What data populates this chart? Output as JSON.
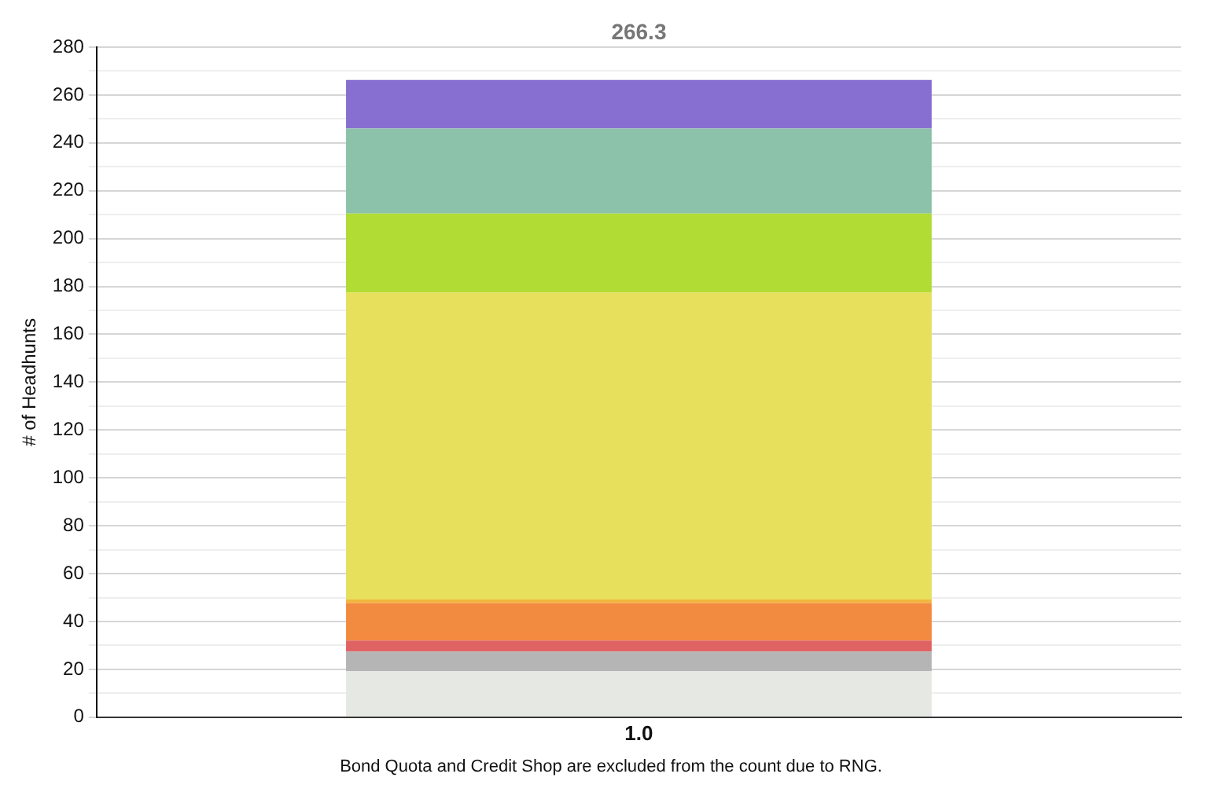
{
  "chart_data": {
    "type": "bar",
    "stacked": true,
    "ylabel": "# of Headhunts",
    "categories": [
      "1.0"
    ],
    "series": [
      {
        "color": "#e6e8e3",
        "values": [
          19.3
        ]
      },
      {
        "color": "#b5b5b5",
        "values": [
          8.1
        ]
      },
      {
        "color": "#e06363",
        "values": [
          4.6
        ]
      },
      {
        "color": "#f28a3f",
        "values": [
          15.7
        ]
      },
      {
        "color": "#f2b63f",
        "values": [
          1.5
        ]
      },
      {
        "color": "#e6e05d",
        "values": [
          128.3
        ]
      },
      {
        "color": "#b0dc33",
        "values": [
          33
        ]
      },
      {
        "color": "#8bc2a9",
        "values": [
          35.5
        ]
      },
      {
        "color": "#866fd0",
        "values": [
          20.3
        ]
      }
    ],
    "totals": [
      "266.3"
    ],
    "ylim": [
      0,
      280
    ],
    "yticks": [
      0,
      {
        "value": 10,
        "label": null
      },
      20,
      {
        "value": 30,
        "label": null
      },
      40,
      {
        "value": 50,
        "label": null
      },
      60,
      {
        "value": 70,
        "label": null
      },
      80,
      {
        "value": 90,
        "label": null
      },
      100,
      {
        "value": 110,
        "label": null
      },
      120,
      {
        "value": 130,
        "label": null
      },
      140,
      {
        "value": 150,
        "label": null
      },
      160,
      {
        "value": 170,
        "label": null
      },
      180,
      {
        "value": 190,
        "label": null
      },
      200,
      {
        "value": 210,
        "label": null
      },
      220,
      {
        "value": 230,
        "label": null
      },
      240,
      {
        "value": 250,
        "label": null
      },
      260,
      {
        "value": 270,
        "label": null
      },
      280
    ],
    "grid": "y",
    "legend": false,
    "annotations": [
      "Bond Quota and Credit Shop are excluded from the count due to RNG."
    ]
  }
}
